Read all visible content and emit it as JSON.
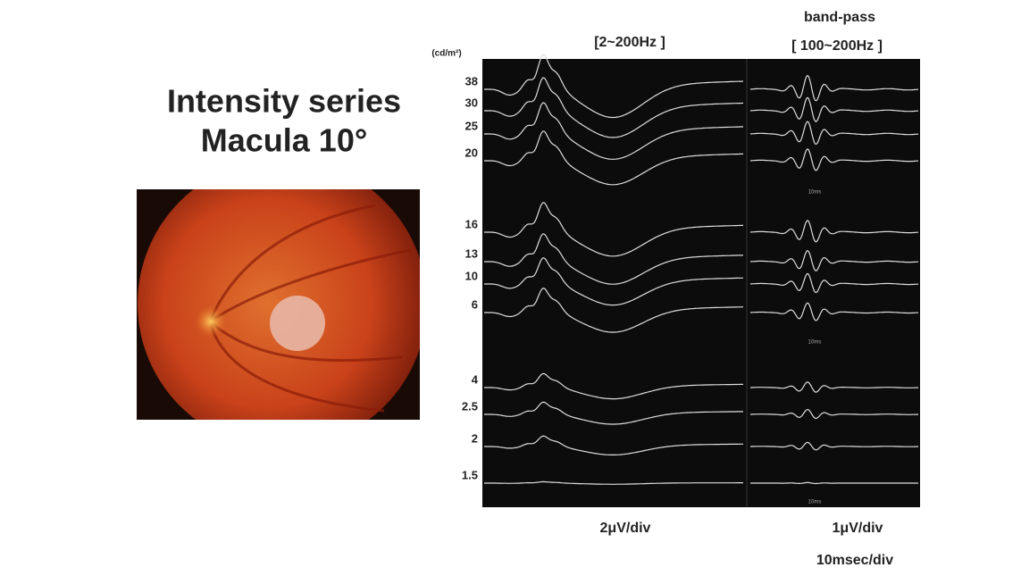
{
  "title_lines": [
    "Intensity series",
    "Macula 10°"
  ],
  "unit": "(cd/m²)",
  "panel_headers": {
    "broadband": "[2~200Hz ]",
    "bandpass_title": "band-pass",
    "bandpass": "[ 100~200Hz ]"
  },
  "intensities": [
    "38",
    "30",
    "25",
    "20",
    "16",
    "13",
    "10",
    "6",
    "4",
    "2.5",
    "2",
    "1.5"
  ],
  "time_marks": [
    "10ms",
    "10ms",
    "10ms"
  ],
  "scales": {
    "left": "2μV/div",
    "right": "1μV/div",
    "time": "10msec/div"
  }
}
